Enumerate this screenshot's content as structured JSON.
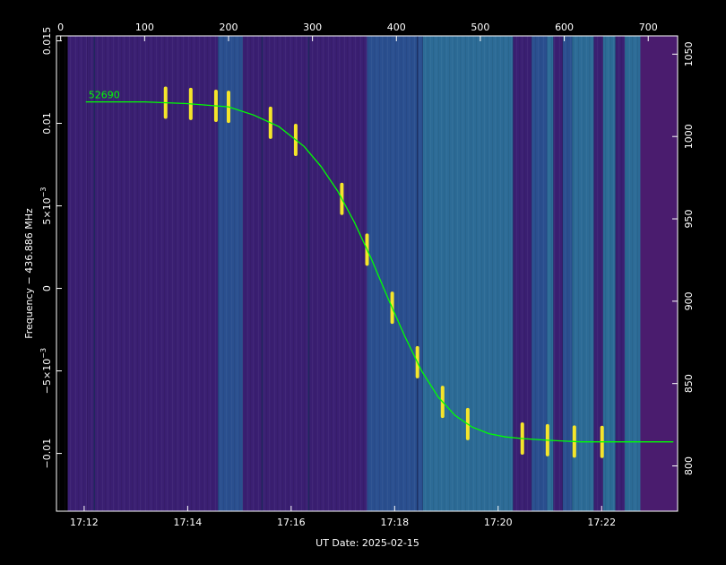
{
  "chart_data": {
    "type": "line",
    "title": "",
    "xlabel": "UT Date: 2025-02-15",
    "ylabel": "Frequency − 436.886 MHz",
    "x_ticks_bottom": [
      "17:12",
      "17:14",
      "17:16",
      "17:18",
      "17:20",
      "17:22"
    ],
    "x_ticks_top": [
      "0",
      "100",
      "200",
      "300",
      "400",
      "500",
      "600",
      "700"
    ],
    "y_ticks_left": [
      {
        "value": 0.015,
        "label": "0.015"
      },
      {
        "value": 0.01,
        "label": "0.01"
      },
      {
        "value": 0.005,
        "label": "5×10",
        "exp": "−3"
      },
      {
        "value": 0,
        "label": "0"
      },
      {
        "value": -0.005,
        "label": "−5×10",
        "exp": "−3"
      },
      {
        "value": -0.01,
        "label": "−0.01"
      }
    ],
    "y_ticks_right": [
      "1050",
      "1000",
      "950",
      "900",
      "850",
      "800"
    ],
    "xlim_top": [
      -5,
      735
    ],
    "ylim": [
      -0.0135,
      0.0153
    ],
    "yright_range": [
      772.5,
      1061.1
    ],
    "series": [
      {
        "name": "52690",
        "color": "#00ff00",
        "x": [
          30,
          100,
          150,
          200,
          230,
          260,
          290,
          310,
          330,
          350,
          370,
          390,
          410,
          430,
          450,
          470,
          490,
          510,
          530,
          550,
          580,
          620,
          660,
          700,
          730
        ],
        "y": [
          0.0113,
          0.0113,
          0.0112,
          0.011,
          0.0105,
          0.0098,
          0.0086,
          0.0074,
          0.0059,
          0.004,
          0.0018,
          -0.0006,
          -0.0029,
          -0.005,
          -0.0066,
          -0.0077,
          -0.0084,
          -0.0088,
          -0.009,
          -0.0091,
          -0.0092,
          -0.0093,
          -0.0093,
          -0.0093,
          -0.0093
        ]
      }
    ],
    "colors": {
      "background": "#000000",
      "plot_dark": "#3a1f72",
      "plot_mid": "#2a4f8f",
      "plot_teal": "#2c6b96",
      "signal": "#f5e52a",
      "fit_line": "#00ff00",
      "axes": "#ffffff"
    },
    "grid": false,
    "legend": "none"
  }
}
